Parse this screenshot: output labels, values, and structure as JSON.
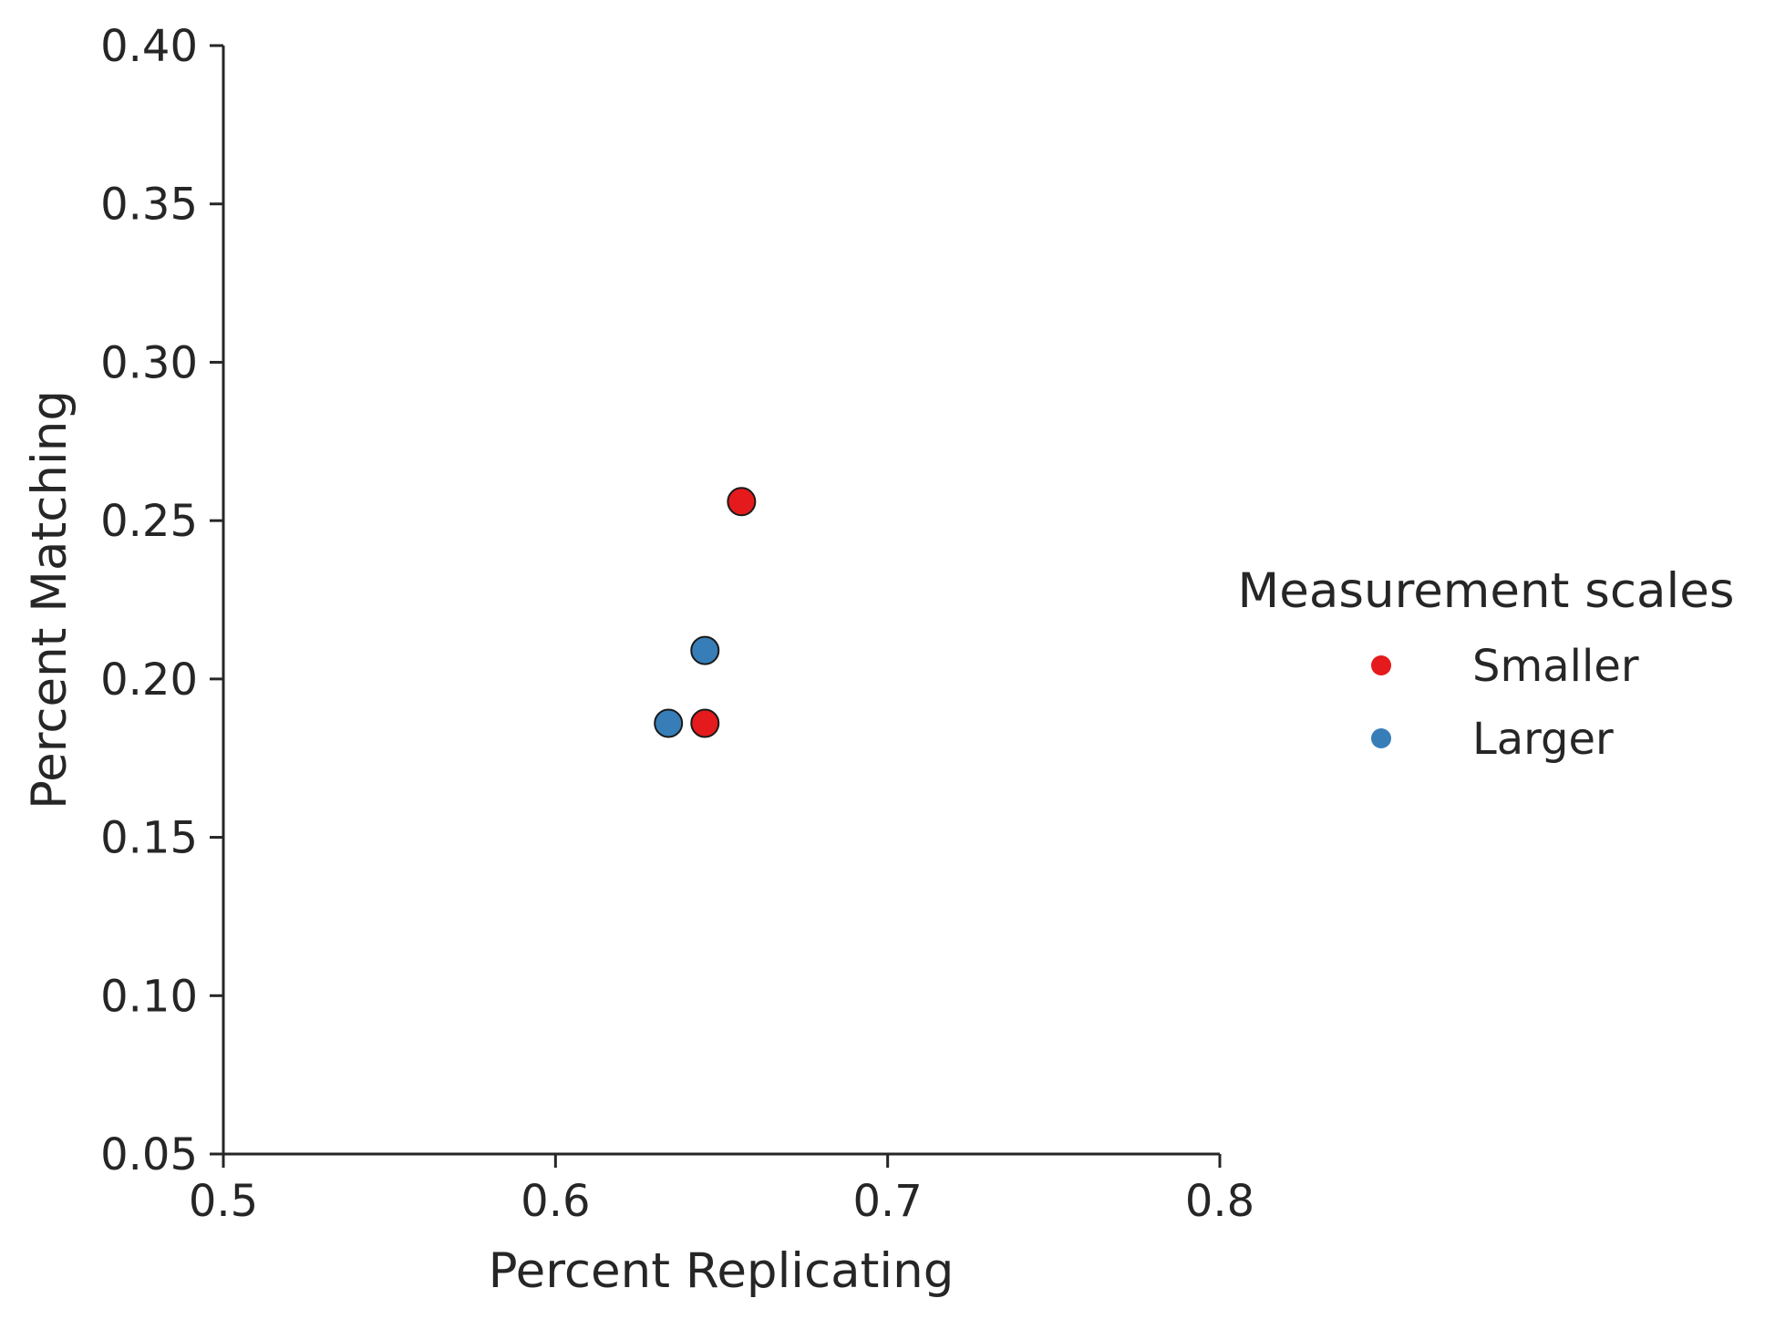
{
  "chart_data": {
    "type": "scatter",
    "title": "",
    "xlabel": "Percent Replicating",
    "ylabel": "Percent Matching",
    "xlim": [
      0.5,
      0.8
    ],
    "ylim": [
      0.05,
      0.4
    ],
    "x_ticks": [
      0.5,
      0.6,
      0.7,
      0.8
    ],
    "x_tick_labels": [
      "0.5",
      "0.6",
      "0.7",
      "0.8"
    ],
    "y_ticks": [
      0.05,
      0.1,
      0.15,
      0.2,
      0.25,
      0.3,
      0.35,
      0.4
    ],
    "y_tick_labels": [
      "0.05",
      "0.10",
      "0.15",
      "0.20",
      "0.25",
      "0.30",
      "0.35",
      "0.40"
    ],
    "grid": false,
    "legend": {
      "title": "Measurement scales",
      "placement": "right"
    },
    "series": [
      {
        "name": "Smaller",
        "color": "#e41a1c",
        "points": [
          {
            "x": 0.656,
            "y": 0.256
          },
          {
            "x": 0.645,
            "y": 0.186
          }
        ]
      },
      {
        "name": "Larger",
        "color": "#377eb8",
        "points": [
          {
            "x": 0.645,
            "y": 0.209
          },
          {
            "x": 0.634,
            "y": 0.186
          }
        ]
      }
    ]
  }
}
